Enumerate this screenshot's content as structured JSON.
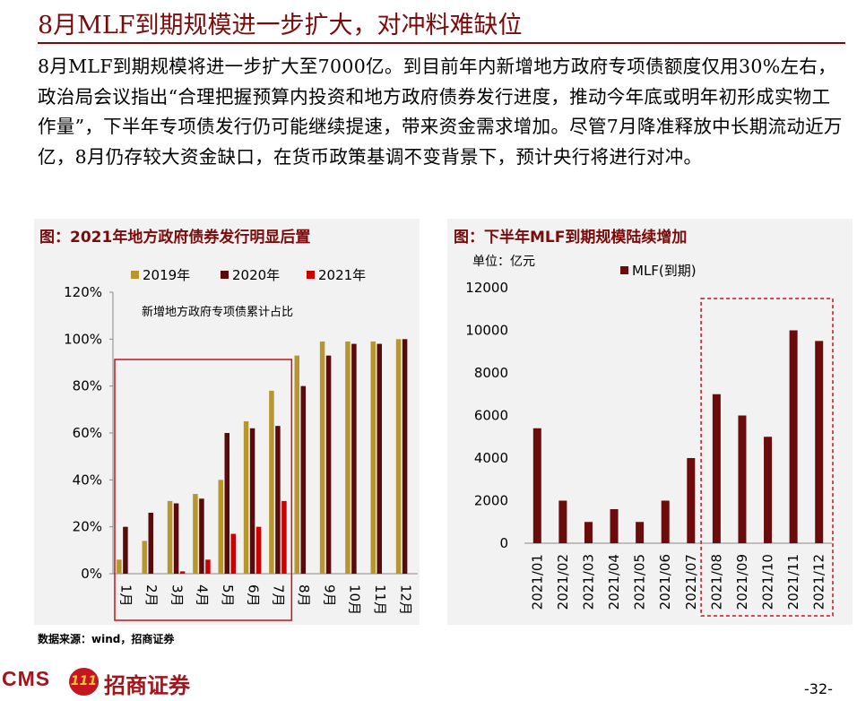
{
  "page_title": "8月MLF到期规模进一步扩大，对冲料难缺位",
  "paragraph": "8月MLF到期规模将进一步扩大至7000亿。到目前年内新增地方政府专项债额度仅用30%左右，政治局会议指出“合理把握预算内投资和地方政府债券发行进度，推动今年底或明年初形成实物工作量”，下半年专项债发行仍可能继续提速，带来资金需求增加。尽管7月降准释放中长期流动近万亿，8月仍存较大资金缺口，在货币政策基调不变背景下，预计央行将进行对冲。",
  "source": "数据来源：wind，招商证券",
  "logo": {
    "latin": "CMS",
    "badge": "111",
    "chinese": "招商证券"
  },
  "page_number": "-32-",
  "colors": {
    "brand": "#7b0a0a",
    "s2019": "#b8962e",
    "s2020": "#5a0a0a",
    "s2021": "#cc0000",
    "mlf": "#6b0b0b",
    "highlight": "#c0141b"
  },
  "chart_data": [
    {
      "type": "bar",
      "title": "图：2021年地方政府债券发行明显后置",
      "annotation": "新增地方政府专项债累计占比",
      "categories": [
        "1月",
        "2月",
        "3月",
        "4月",
        "5月",
        "6月",
        "7月",
        "8月",
        "9月",
        "10月",
        "11月",
        "12月"
      ],
      "series": [
        {
          "name": "2019年",
          "values": [
            6,
            14,
            31,
            34,
            40,
            65,
            78,
            93,
            99,
            99,
            99,
            100
          ]
        },
        {
          "name": "2020年",
          "values": [
            20,
            26,
            30,
            32,
            60,
            62,
            63,
            80,
            93,
            98,
            98,
            100
          ]
        },
        {
          "name": "2021年",
          "values": [
            null,
            null,
            1,
            6,
            17,
            20,
            31,
            null,
            null,
            null,
            null,
            null
          ]
        }
      ],
      "ylim": [
        0,
        120
      ],
      "yticks": [
        "0%",
        "20%",
        "40%",
        "60%",
        "80%",
        "100%",
        "120%"
      ],
      "highlight_range": "1月-7月",
      "legend_position": "top"
    },
    {
      "type": "bar",
      "title": "图：下半年MLF到期规模陆续增加",
      "unit_label": "单位：亿元",
      "categories": [
        "2021/01",
        "2021/02",
        "2021/03",
        "2021/04",
        "2021/05",
        "2021/06",
        "2021/07",
        "2021/08",
        "2021/09",
        "2021/10",
        "2021/11",
        "2021/12"
      ],
      "series": [
        {
          "name": "MLF(到期)",
          "values": [
            5400,
            2000,
            1000,
            1600,
            1000,
            2000,
            4000,
            7000,
            6000,
            5000,
            10000,
            9500
          ]
        }
      ],
      "ylim": [
        0,
        12000
      ],
      "yticks": [
        "0",
        "2000",
        "4000",
        "6000",
        "8000",
        "10000",
        "12000"
      ],
      "highlight_range": "2021/08-2021/12",
      "legend_position": "top"
    }
  ]
}
